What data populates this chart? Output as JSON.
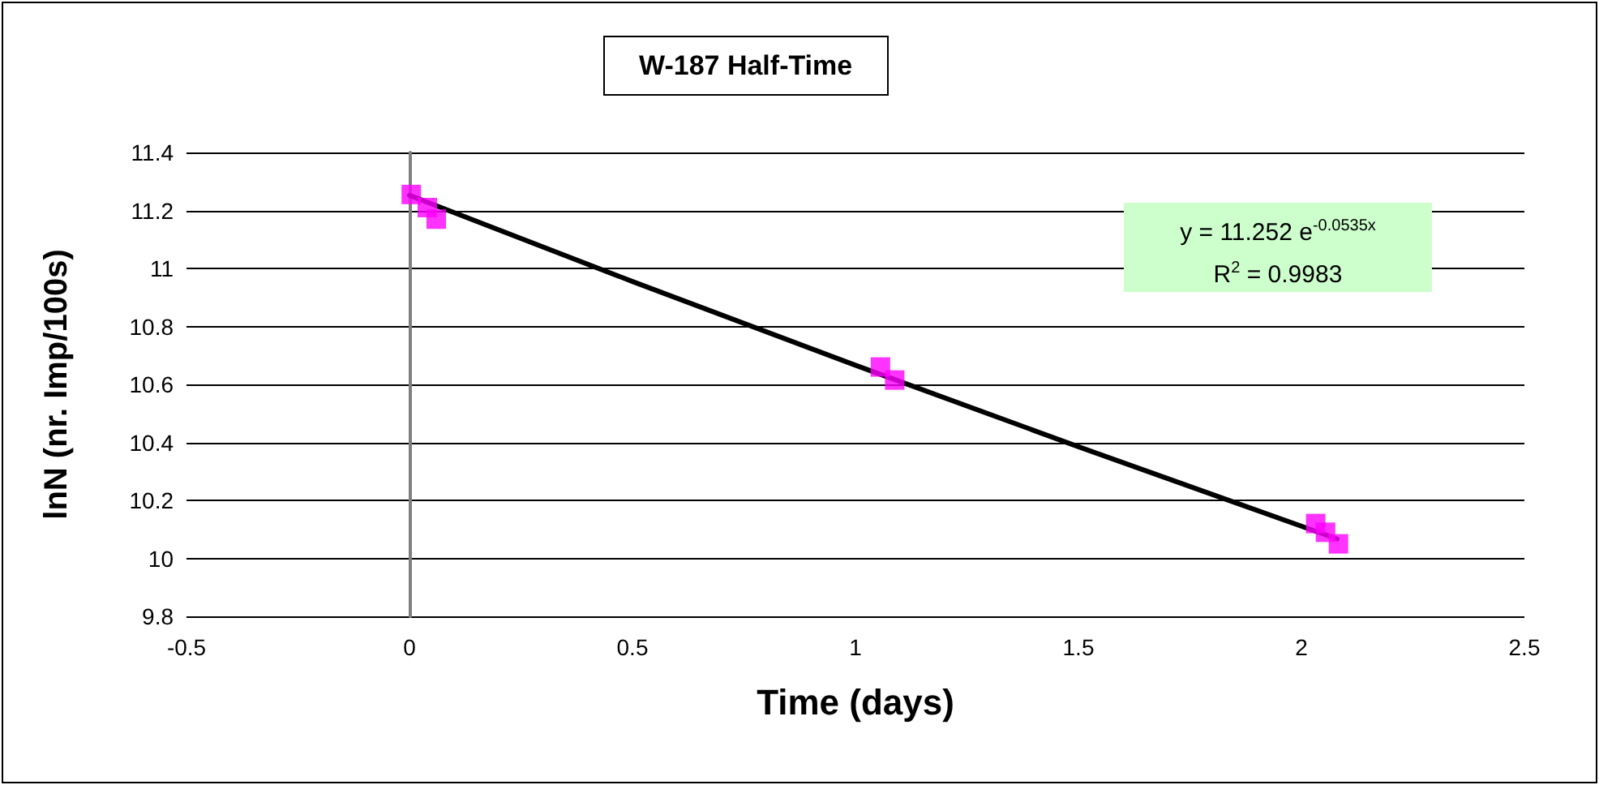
{
  "chart_data": {
    "type": "scatter",
    "title": "W-187 Half-Time",
    "xlabel": "Time (days)",
    "ylabel": "lnN (nr. Imp/100s)",
    "series": [
      {
        "color": "#ff00ff",
        "marker": "square",
        "x": [
          0.004,
          0.04,
          0.06,
          1.056,
          1.088,
          2.032,
          2.054,
          2.083
        ],
        "values": [
          11.255,
          11.21,
          11.17,
          10.66,
          10.615,
          10.12,
          10.09,
          10.05
        ]
      },
      {
        "type": "line",
        "color": "#000000",
        "marker": "none",
        "x": [
          0,
          0.5,
          1,
          1.5,
          2.08
        ],
        "values": [
          11.252,
          10.955,
          10.666,
          10.385,
          10.067
        ]
      }
    ],
    "annotations": [
      "y = 11.252 e$^{-0.0535x}$",
      "R$^{2}$ = 0.9983"
    ],
    "xlim": [
      -0.5,
      2.5
    ],
    "xticks": [
      -0.5,
      0,
      0.5,
      1,
      1.5,
      2,
      2.5
    ],
    "ylim": [
      9.8,
      11.4
    ],
    "yticks": [
      9.8,
      10,
      10.2,
      10.4,
      10.6,
      10.8,
      11,
      11.2,
      11.4
    ],
    "grid": "y"
  }
}
